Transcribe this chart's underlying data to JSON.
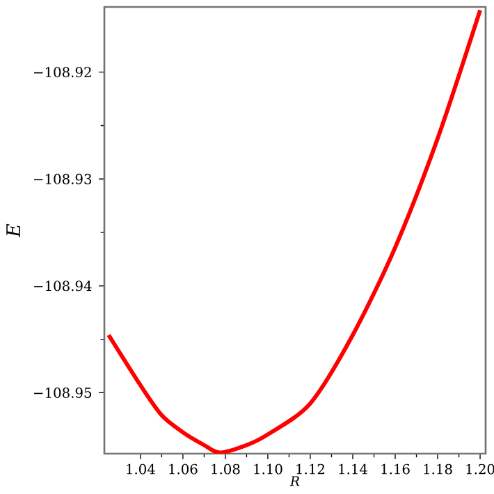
{
  "chart_data": {
    "type": "line",
    "xlabel": "R",
    "ylabel": "E",
    "x": [
      1.025,
      1.04,
      1.05,
      1.06,
      1.07,
      1.0774,
      1.09,
      1.1,
      1.12,
      1.14,
      1.16,
      1.18,
      1.2
    ],
    "series": [
      {
        "color": "#ff0000",
        "values": [
          -108.9446,
          -108.9493,
          -108.9521,
          -108.9537,
          -108.9549,
          -108.9556,
          -108.9549,
          -108.9539,
          -108.951,
          -108.9446,
          -108.9364,
          -108.9262,
          -108.9142
        ]
      }
    ],
    "xlim": [
      1.023,
      1.2026
    ],
    "ylim": [
      -108.9557,
      -108.9139
    ],
    "xticks": [
      1.04,
      1.06,
      1.08,
      {
        "value": 1.1,
        "label": "1.10"
      },
      1.12,
      1.14,
      1.16,
      1.18,
      {
        "value": 1.2,
        "label": "1.20"
      }
    ],
    "yticks": [
      {
        "value": -108.95,
        "label": "−108.95"
      },
      {
        "value": -108.94,
        "label": "−108.94"
      },
      {
        "value": -108.93,
        "label": "−108.93"
      },
      {
        "value": -108.92,
        "label": "−108.92"
      }
    ],
    "grid": false,
    "marker": "none",
    "line_style": "solid"
  }
}
